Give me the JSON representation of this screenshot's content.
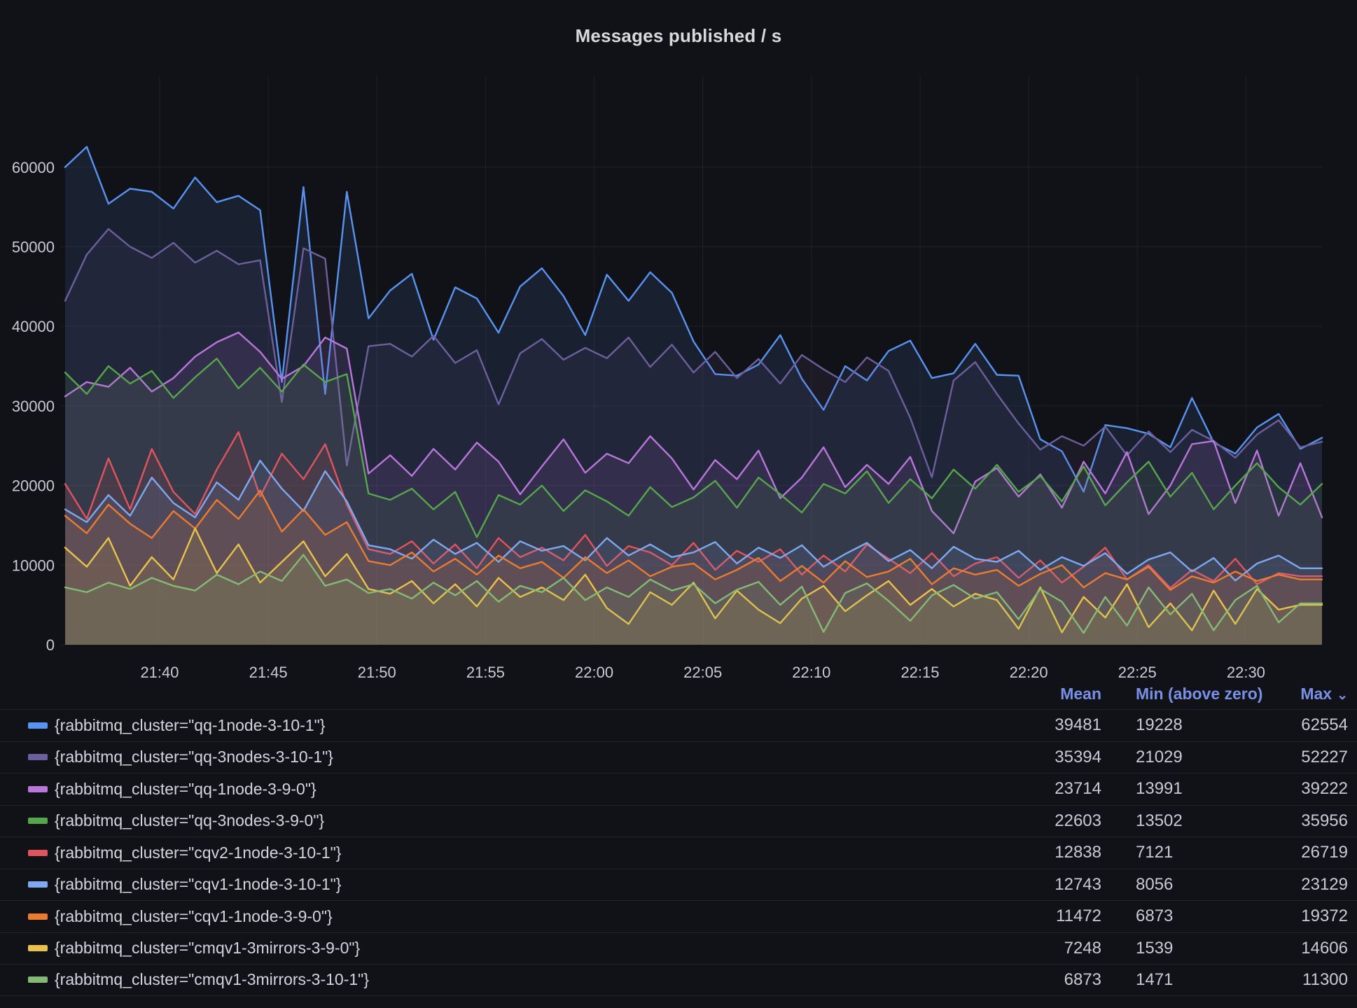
{
  "panel": {
    "title": "Messages published / s"
  },
  "chart_data": {
    "type": "line",
    "title": "Messages published / s",
    "grid": true,
    "legend_position": "bottom-table",
    "fill_opacity": 0.11,
    "line_width": 2.4,
    "x_axis": {
      "domain_minutes": [
        1295.65,
        1353.5
      ],
      "ticks": [
        {
          "label": "21:40",
          "minutes": 1300
        },
        {
          "label": "21:45",
          "minutes": 1305
        },
        {
          "label": "21:50",
          "minutes": 1310
        },
        {
          "label": "21:55",
          "minutes": 1315
        },
        {
          "label": "22:00",
          "minutes": 1320
        },
        {
          "label": "22:05",
          "minutes": 1325
        },
        {
          "label": "22:10",
          "minutes": 1330
        },
        {
          "label": "22:15",
          "minutes": 1335
        },
        {
          "label": "22:20",
          "minutes": 1340
        },
        {
          "label": "22:25",
          "minutes": 1345
        },
        {
          "label": "22:30",
          "minutes": 1350
        }
      ]
    },
    "y_axis": {
      "domain": [
        0,
        71500
      ],
      "ticks": [
        {
          "label": "0",
          "value": 0
        },
        {
          "label": "10000",
          "value": 10000
        },
        {
          "label": "20000",
          "value": 20000
        },
        {
          "label": "30000",
          "value": 30000
        },
        {
          "label": "40000",
          "value": 40000
        },
        {
          "label": "50000",
          "value": 50000
        },
        {
          "label": "60000",
          "value": 60000
        }
      ]
    },
    "series": [
      {
        "name": "{rabbitmq_cluster=\"qq-1node-3-10-1\"}",
        "color": "#5794F2",
        "values": [
          60000,
          62554,
          55400,
          57300,
          56900,
          54800,
          58700,
          55600,
          56400,
          54600,
          33000,
          57500,
          31500,
          56900,
          41000,
          44500,
          46600,
          38300,
          44900,
          43500,
          39200,
          45000,
          47300,
          43800,
          38900,
          46500,
          43200,
          46800,
          44200,
          38100,
          34000,
          33800,
          35200,
          38900,
          33400,
          29500,
          35000,
          33200,
          36900,
          38200,
          33500,
          34100,
          37800,
          33900,
          33800,
          25800,
          24300,
          19228,
          27600,
          27200,
          26500,
          24800,
          31000,
          25400,
          24000,
          27300,
          29000,
          24600,
          26000
        ]
      },
      {
        "name": "{rabbitmq_cluster=\"qq-3nodes-3-10-1\"}",
        "color": "#6D5F9E",
        "values": [
          43200,
          49000,
          52227,
          50000,
          48600,
          50500,
          48000,
          49500,
          47800,
          48300,
          30500,
          49800,
          48500,
          22500,
          37500,
          37800,
          36200,
          38800,
          35400,
          37000,
          30200,
          36600,
          38400,
          35800,
          37300,
          36000,
          38600,
          34900,
          37700,
          34200,
          36800,
          33500,
          35900,
          32800,
          36400,
          34600,
          33000,
          36100,
          34400,
          28500,
          21029,
          33200,
          35500,
          31500,
          27800,
          24500,
          26200,
          25000,
          27400,
          23800,
          26800,
          24200,
          27000,
          25600,
          23500,
          26400,
          28200,
          24800,
          25500
        ]
      },
      {
        "name": "{rabbitmq_cluster=\"qq-1node-3-9-0\"}",
        "color": "#B877D9",
        "values": [
          31200,
          33000,
          32400,
          34800,
          31800,
          33500,
          36200,
          38000,
          39222,
          36800,
          33400,
          35000,
          38600,
          37200,
          21500,
          23800,
          21200,
          24600,
          22000,
          25400,
          23000,
          18900,
          22400,
          25800,
          21600,
          24000,
          22800,
          26200,
          23400,
          19500,
          23200,
          20800,
          24400,
          18400,
          21000,
          24800,
          19800,
          22600,
          20200,
          23600,
          16800,
          13991,
          20500,
          22200,
          18600,
          21400,
          17200,
          23000,
          19000,
          24200,
          16400,
          20000,
          25200,
          25600,
          17800,
          24400,
          16200,
          22800,
          16000
        ]
      },
      {
        "name": "{rabbitmq_cluster=\"qq-3nodes-3-9-0\"}",
        "color": "#56A64B",
        "values": [
          34200,
          31500,
          35000,
          32800,
          34400,
          31000,
          33600,
          35956,
          32200,
          34800,
          31800,
          35200,
          33000,
          34000,
          19000,
          18200,
          19600,
          17000,
          19200,
          13502,
          18800,
          17600,
          20000,
          16800,
          19400,
          18000,
          16200,
          19800,
          17300,
          18500,
          20600,
          17200,
          21000,
          18900,
          16600,
          20200,
          19000,
          21800,
          17800,
          20800,
          18400,
          22000,
          19600,
          22600,
          19200,
          21200,
          18000,
          22400,
          17500,
          20400,
          23000,
          18600,
          21600,
          17000,
          20000,
          22800,
          19800,
          17600,
          20200
        ]
      },
      {
        "name": "{rabbitmq_cluster=\"cqv2-1node-3-10-1\"}",
        "color": "#E0545E",
        "values": [
          20200,
          15800,
          23400,
          17000,
          24600,
          19200,
          16400,
          22000,
          26719,
          18600,
          24000,
          20800,
          25200,
          17600,
          12000,
          11400,
          13000,
          10200,
          12600,
          9600,
          13400,
          11000,
          12200,
          10600,
          13800,
          9900,
          12400,
          11600,
          10000,
          12800,
          9400,
          11800,
          10400,
          12000,
          8800,
          11200,
          9200,
          12600,
          10800,
          9000,
          11500,
          8600,
          10200,
          11000,
          8400,
          10600,
          7800,
          9800,
          12200,
          8200,
          10000,
          7121,
          9400,
          8000,
          10800,
          7600,
          9000,
          8600,
          8600
        ]
      },
      {
        "name": "{rabbitmq_cluster=\"cqv1-1node-3-10-1\"}",
        "color": "#7EA9F0",
        "values": [
          17000,
          15400,
          18800,
          16200,
          21000,
          17800,
          16000,
          20400,
          18200,
          23129,
          19600,
          16800,
          21800,
          18000,
          12500,
          12000,
          10800,
          13200,
          11400,
          12800,
          10400,
          13000,
          11800,
          12400,
          10600,
          13400,
          11200,
          12600,
          11000,
          11600,
          12900,
          10200,
          12200,
          10900,
          12500,
          9800,
          11400,
          12800,
          10500,
          11900,
          9600,
          12300,
          10800,
          10400,
          11800,
          9400,
          11000,
          9900,
          11500,
          8900,
          10700,
          11600,
          9200,
          10900,
          8056,
          10200,
          11200,
          9600,
          9600
        ]
      },
      {
        "name": "{rabbitmq_cluster=\"cqv1-1node-3-9-0\"}",
        "color": "#EB7B2F",
        "values": [
          16200,
          14000,
          17600,
          15200,
          13400,
          16800,
          14600,
          18200,
          15800,
          19372,
          14200,
          17000,
          13800,
          15400,
          10500,
          10000,
          11600,
          9200,
          10800,
          8800,
          11200,
          9600,
          10400,
          8400,
          11000,
          9000,
          10600,
          8600,
          9800,
          10200,
          8200,
          9400,
          10900,
          8000,
          9900,
          7800,
          10500,
          8500,
          9200,
          10800,
          7600,
          9600,
          8800,
          9400,
          7400,
          8900,
          10000,
          7200,
          9000,
          8200,
          9800,
          6873,
          8600,
          7800,
          9200,
          8000,
          8800,
          8200,
          8200
        ]
      },
      {
        "name": "{rabbitmq_cluster=\"cmqv1-3mirrors-3-9-0\"}",
        "color": "#E8C34B",
        "values": [
          12200,
          9800,
          13400,
          7400,
          11000,
          8200,
          14606,
          9000,
          12600,
          7800,
          10400,
          13000,
          8600,
          11400,
          7000,
          6400,
          8000,
          5200,
          7600,
          4800,
          8400,
          6000,
          7200,
          5600,
          8800,
          4600,
          2600,
          6600,
          5000,
          7800,
          3300,
          6800,
          4400,
          2700,
          5800,
          7400,
          4200,
          6200,
          8000,
          5000,
          7000,
          4800,
          6400,
          5600,
          2000,
          7200,
          1539,
          6000,
          3400,
          7600,
          2200,
          5200,
          1800,
          6800,
          2600,
          7000,
          4400,
          5000,
          5000
        ]
      },
      {
        "name": "{rabbitmq_cluster=\"cmqv1-3mirrors-3-10-1\"}",
        "color": "#84BB74",
        "values": [
          7200,
          6600,
          7800,
          7000,
          8400,
          7400,
          6800,
          8800,
          7600,
          9200,
          8000,
          11300,
          7400,
          8200,
          6500,
          7000,
          5800,
          7800,
          6200,
          8000,
          5400,
          7400,
          6600,
          8400,
          5600,
          7200,
          6000,
          8200,
          6800,
          7600,
          5200,
          6900,
          7900,
          5000,
          7300,
          1600,
          6500,
          7700,
          5500,
          3000,
          6200,
          7500,
          5800,
          6600,
          3200,
          7000,
          5400,
          1471,
          6000,
          2400,
          7200,
          3800,
          6400,
          1800,
          5600,
          7400,
          2800,
          5200,
          5200
        ]
      }
    ]
  },
  "legend": {
    "columns": {
      "mean": "Mean",
      "min": "Min (above zero)",
      "max": "Max"
    },
    "sort": {
      "column": "Max",
      "direction": "desc",
      "icon": "⌄"
    },
    "rows": [
      {
        "label": "{rabbitmq_cluster=\"qq-1node-3-10-1\"}",
        "color": "#5794F2",
        "mean": "39481",
        "min": "19228",
        "max": "62554"
      },
      {
        "label": "{rabbitmq_cluster=\"qq-3nodes-3-10-1\"}",
        "color": "#6D5F9E",
        "mean": "35394",
        "min": "21029",
        "max": "52227"
      },
      {
        "label": "{rabbitmq_cluster=\"qq-1node-3-9-0\"}",
        "color": "#B877D9",
        "mean": "23714",
        "min": "13991",
        "max": "39222"
      },
      {
        "label": "{rabbitmq_cluster=\"qq-3nodes-3-9-0\"}",
        "color": "#56A64B",
        "mean": "22603",
        "min": "13502",
        "max": "35956"
      },
      {
        "label": "{rabbitmq_cluster=\"cqv2-1node-3-10-1\"}",
        "color": "#E0545E",
        "mean": "12838",
        "min": "7121",
        "max": "26719"
      },
      {
        "label": "{rabbitmq_cluster=\"cqv1-1node-3-10-1\"}",
        "color": "#7EA9F0",
        "mean": "12743",
        "min": "8056",
        "max": "23129"
      },
      {
        "label": "{rabbitmq_cluster=\"cqv1-1node-3-9-0\"}",
        "color": "#EB7B2F",
        "mean": "11472",
        "min": "6873",
        "max": "19372"
      },
      {
        "label": "{rabbitmq_cluster=\"cmqv1-3mirrors-3-9-0\"}",
        "color": "#E8C34B",
        "mean": "7248",
        "min": "1539",
        "max": "14606"
      },
      {
        "label": "{rabbitmq_cluster=\"cmqv1-3mirrors-3-10-1\"}",
        "color": "#84BB74",
        "mean": "6873",
        "min": "1471",
        "max": "11300"
      }
    ]
  }
}
